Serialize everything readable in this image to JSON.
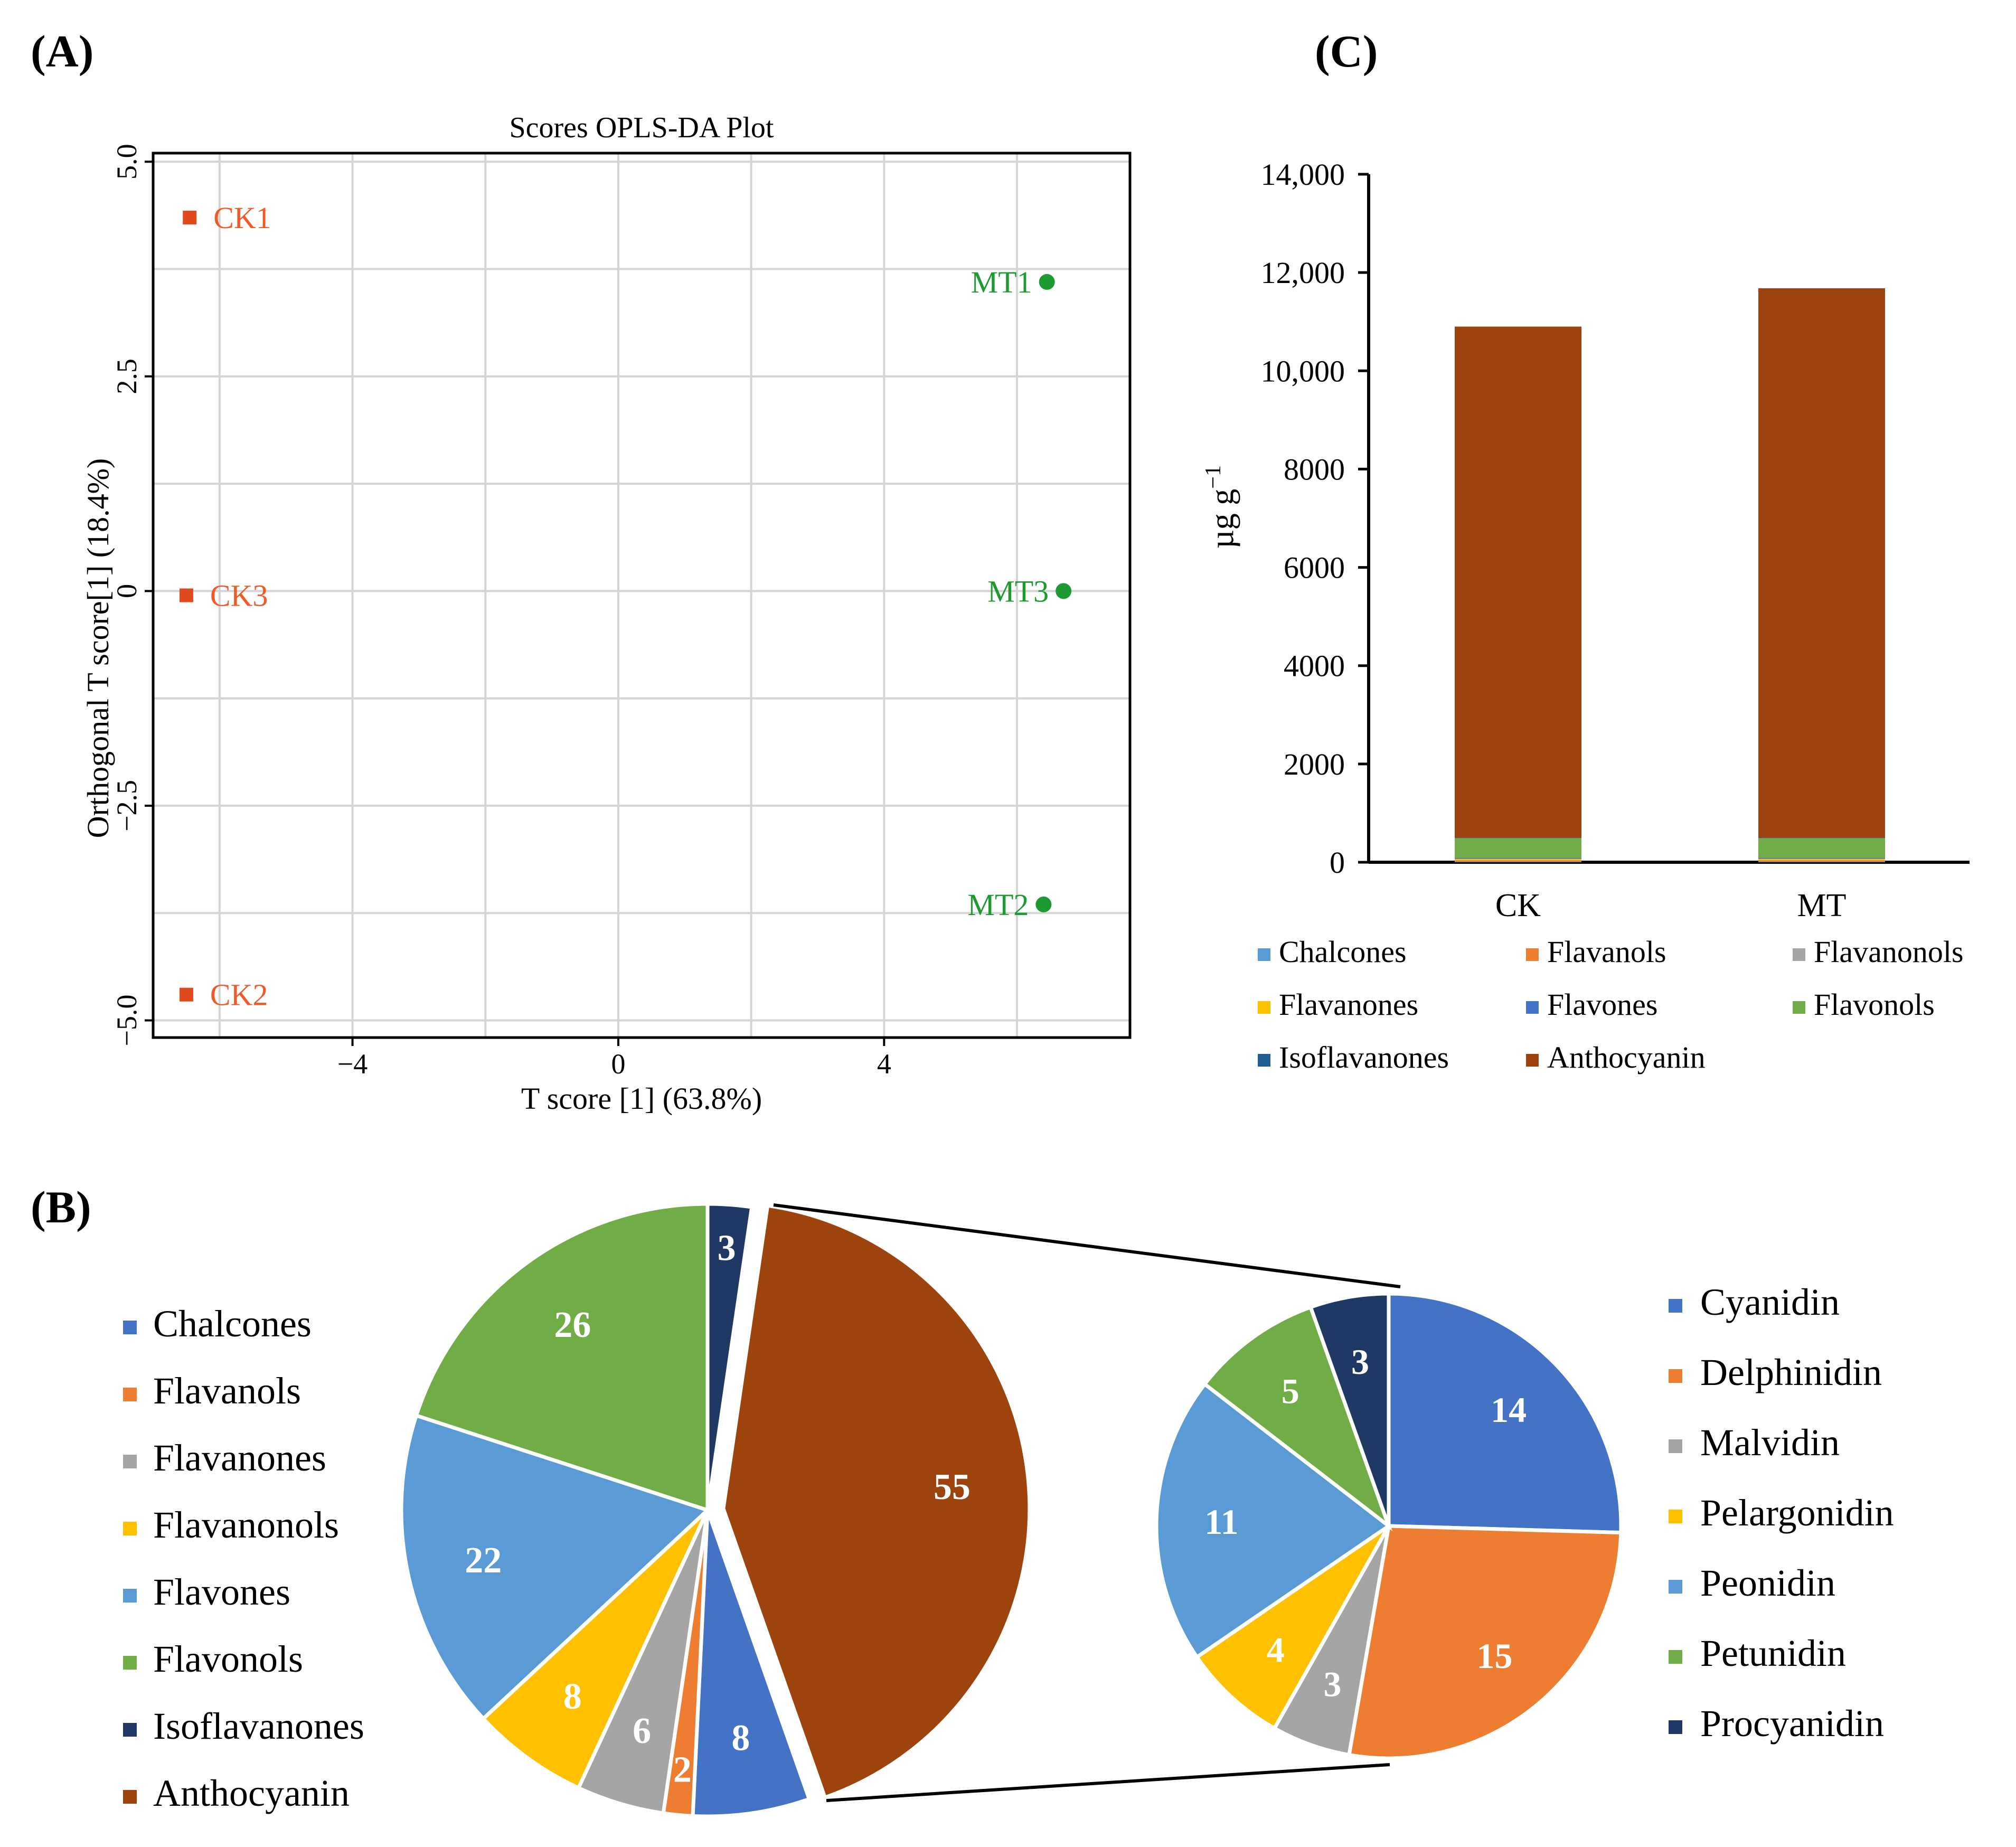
{
  "panel_labels": {
    "a": "(A)",
    "b": "(B)",
    "c": "(C)"
  },
  "chart_data": [
    {
      "id": "A",
      "type": "scatter",
      "title": "Scores OPLS-DA Plot",
      "xlabel": "T score [1] (63.8%)",
      "ylabel": "Orthogonal T score[1] (18.4%)",
      "xlim": [
        -7.0,
        7.7
      ],
      "ylim": [
        -5.2,
        5.1
      ],
      "x_ticks": [
        -4,
        0,
        4
      ],
      "x_tick_labels": [
        "−4",
        "0",
        "4"
      ],
      "y_ticks": [
        5.0,
        2.5,
        0,
        -2.5,
        -5.0
      ],
      "y_tick_labels": [
        "5.0",
        "2.5",
        "0",
        "−2.5",
        "−5.0"
      ],
      "x_grid": [
        -6,
        -4,
        -2,
        0,
        2,
        4,
        6
      ],
      "y_grid": [
        5.0,
        3.75,
        2.5,
        1.25,
        0,
        -1.25,
        -2.5,
        -3.75,
        -5.0
      ],
      "series": [
        {
          "name": "CK",
          "marker": "square",
          "color": "#E04A1F",
          "label_color": "#F05A28",
          "label_side": "right",
          "points": [
            {
              "label": "CK1",
              "x": -6.45,
              "y": 4.35
            },
            {
              "label": "CK3",
              "x": -6.5,
              "y": -0.05
            },
            {
              "label": "CK2",
              "x": -6.5,
              "y": -4.7
            }
          ]
        },
        {
          "name": "MT",
          "marker": "circle",
          "color": "#1E9A32",
          "label_color": "#1E9A32",
          "label_side": "left",
          "points": [
            {
              "label": "MT1",
              "x": 6.45,
              "y": 3.6
            },
            {
              "label": "MT3",
              "x": 6.7,
              "y": 0.0
            },
            {
              "label": "MT2",
              "x": 6.4,
              "y": -3.65
            }
          ]
        }
      ]
    },
    {
      "id": "B1",
      "type": "pie",
      "title": "",
      "slices": [
        {
          "label": "Isoflavanones",
          "value": 3,
          "color": "#203864"
        },
        {
          "label": "Anthocyanin",
          "value": 55,
          "color": "#9C430E"
        },
        {
          "label": "Chalcones",
          "value": 8,
          "color": "#4472C4"
        },
        {
          "label": "Flavanols",
          "value": 2,
          "color": "#ED7D31"
        },
        {
          "label": "Flavanones",
          "value": 6,
          "color": "#A5A5A5"
        },
        {
          "label": "Flavanonols",
          "value": 8,
          "color": "#FFC000"
        },
        {
          "label": "Flavones",
          "value": 22,
          "color": "#5B9BD5"
        },
        {
          "label": "Flavonols",
          "value": 26,
          "color": "#70AD47"
        }
      ],
      "legend": [
        "Chalcones",
        "Flavanols",
        "Flavanones",
        "Flavanonols",
        "Flavones",
        "Flavonols",
        "Isoflavanones",
        "Anthocyanin"
      ],
      "exploded": "Anthocyanin",
      "legend_position": "left"
    },
    {
      "id": "B2",
      "type": "pie",
      "title": "",
      "slices": [
        {
          "label": "Cyanidin",
          "value": 14,
          "color": "#4472C4"
        },
        {
          "label": "Delphinidin",
          "value": 15,
          "color": "#ED7D31"
        },
        {
          "label": "Malvidin",
          "value": 3,
          "color": "#A5A5A5"
        },
        {
          "label": "Pelargonidin",
          "value": 4,
          "color": "#FFC000"
        },
        {
          "label": "Peonidin",
          "value": 11,
          "color": "#5B9BD5"
        },
        {
          "label": "Petunidin",
          "value": 5,
          "color": "#70AD47"
        },
        {
          "label": "Procyanidin",
          "value": 3,
          "color": "#203864"
        }
      ],
      "legend_position": "right"
    },
    {
      "id": "C",
      "type": "bar",
      "stacked": true,
      "title": "",
      "xlabel": "",
      "ylabel": "µg g",
      "ylabel_superscript": "−1",
      "categories": [
        "CK",
        "MT"
      ],
      "ylim": [
        0,
        14000
      ],
      "y_ticks": [
        0,
        2000,
        4000,
        6000,
        8000,
        10000,
        12000,
        14000
      ],
      "y_tick_labels": [
        "0",
        "2000",
        "4000",
        "6000",
        "8000",
        "10,000",
        "12,000",
        "14,000"
      ],
      "series": [
        {
          "name": "Chalcones",
          "color": "#5B9BD5",
          "values": [
            10,
            10
          ]
        },
        {
          "name": "Flavanols",
          "color": "#ED7D31",
          "values": [
            20,
            20
          ]
        },
        {
          "name": "Flavanonols",
          "color": "#A5A5A5",
          "values": [
            10,
            10
          ]
        },
        {
          "name": "Flavanones",
          "color": "#FFC000",
          "values": [
            30,
            30
          ]
        },
        {
          "name": "Flavones",
          "color": "#4472C4",
          "values": [
            20,
            20
          ]
        },
        {
          "name": "Flavonols",
          "color": "#70AD47",
          "values": [
            400,
            400
          ]
        },
        {
          "name": "Isoflavanones",
          "color": "#255E91",
          "values": [
            10,
            10
          ]
        },
        {
          "name": "Anthocyanin",
          "color": "#9C430E",
          "values": [
            10400,
            11180
          ]
        }
      ],
      "legend_order": [
        "Chalcones",
        "Flavanols",
        "Flavanonols",
        "Flavanones",
        "Flavones",
        "Flavonols",
        "Isoflavanones",
        "Anthocyanin"
      ],
      "legend_position": "bottom"
    }
  ]
}
